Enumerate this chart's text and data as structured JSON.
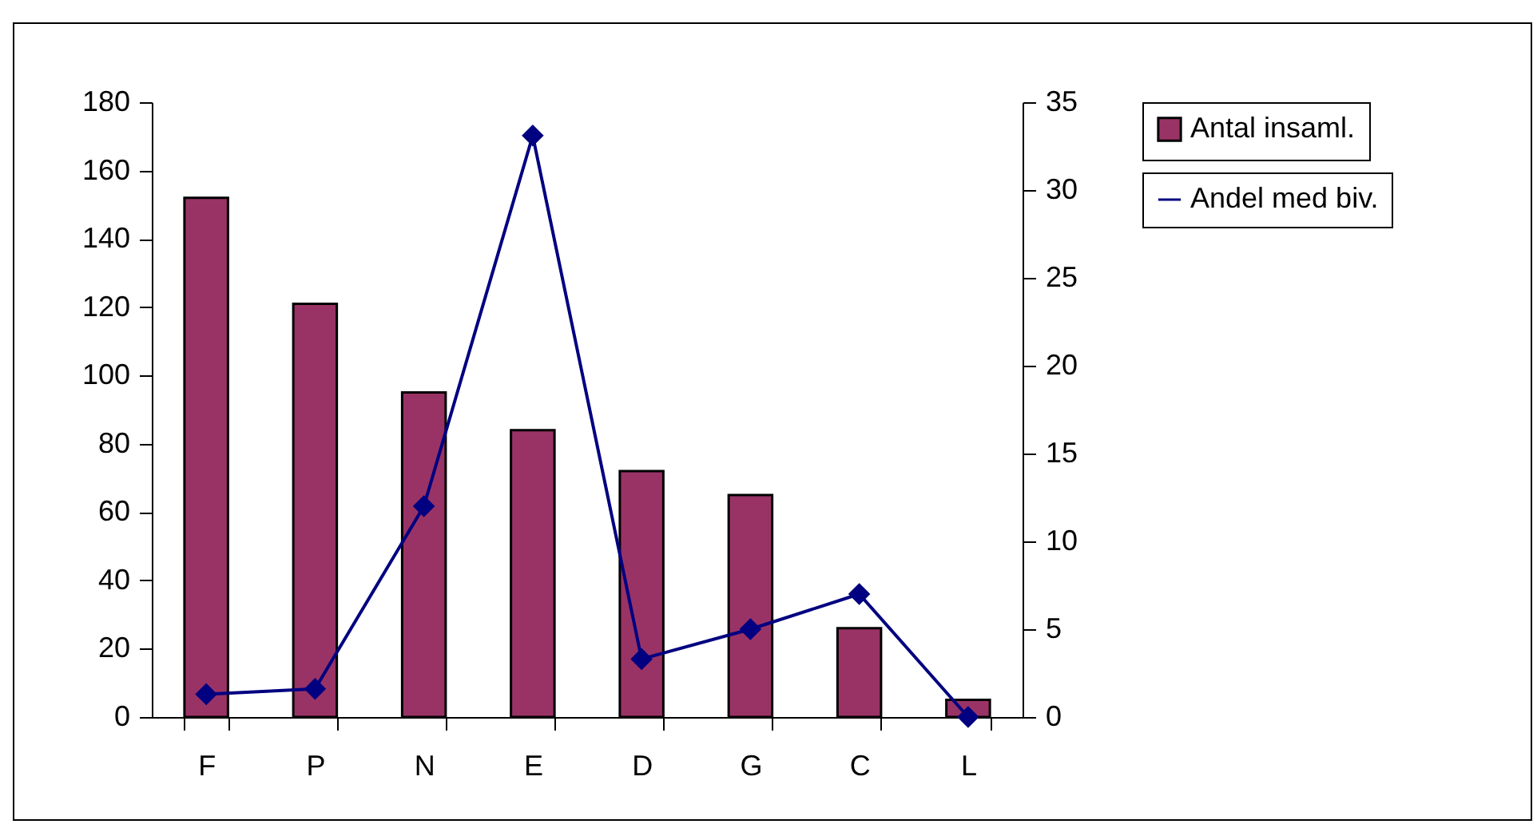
{
  "chart_data": {
    "type": "bar",
    "categories": [
      "F",
      "P",
      "N",
      "E",
      "D",
      "G",
      "C",
      "L"
    ],
    "series": [
      {
        "name": "Antal insaml.",
        "color": "#993366",
        "values": [
          152,
          121,
          95,
          84,
          72,
          65,
          26,
          5
        ]
      },
      {
        "name": "Andel med biv.",
        "type": "line",
        "axis": "y2",
        "color": "#000080",
        "values": [
          1.3,
          1.6,
          12,
          33.1,
          3.3,
          5,
          7,
          0
        ]
      }
    ],
    "ylim": [
      0,
      180
    ],
    "yticks": [
      0,
      20,
      40,
      60,
      80,
      100,
      120,
      140,
      160,
      180
    ],
    "y2lim": [
      0,
      35
    ],
    "y2ticks": [
      0,
      5,
      10,
      15,
      20,
      25,
      30,
      35
    ],
    "grid": false,
    "legend": "right",
    "marker": "diamond",
    "line_style": "solid"
  }
}
